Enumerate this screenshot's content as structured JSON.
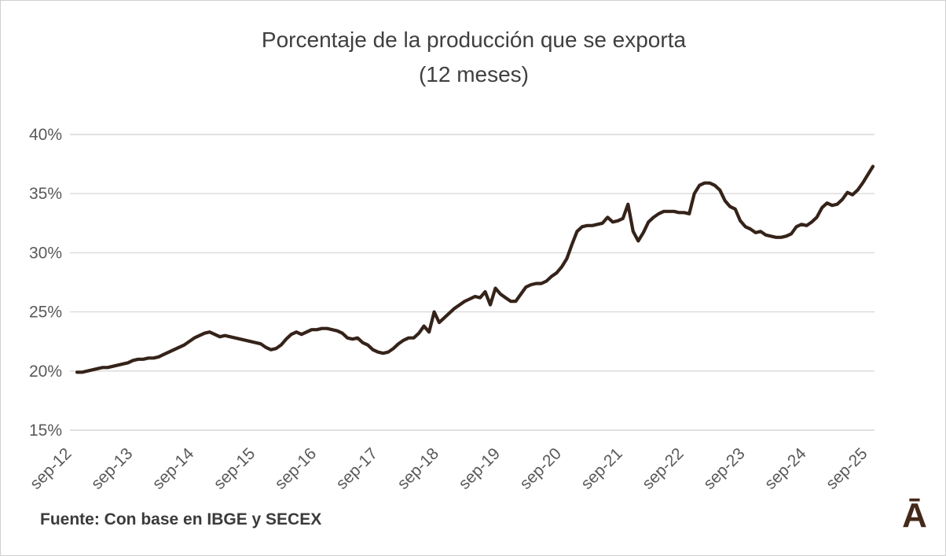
{
  "chart_data": {
    "type": "line",
    "title": "Porcentaje de la producción que se exporta",
    "subtitle": "(12 meses)",
    "x_tick_labels": [
      "sep-12",
      "sep-13",
      "sep-14",
      "sep-15",
      "sep-16",
      "sep-17",
      "sep-18",
      "sep-19",
      "sep-20",
      "sep-21",
      "sep-22",
      "sep-23",
      "sep-24",
      "sep-25"
    ],
    "points_per_tick": 12,
    "interval": "monthly",
    "y_ticks": [
      15,
      20,
      25,
      30,
      35,
      40
    ],
    "y_tick_labels": [
      "15%",
      "20%",
      "25%",
      "30%",
      "35%",
      "40%"
    ],
    "ylim": [
      15,
      40
    ],
    "grid": "horizontal",
    "legend": "none",
    "line_color": "#35231a",
    "gridline_color": "#d9d9d9",
    "axis_label_color": "#595959",
    "title_color": "#3f3f3f",
    "series": [
      {
        "name": "Porcentaje de la producción que se exporta (12 meses)",
        "values": [
          19.9,
          19.9,
          20.0,
          20.1,
          20.2,
          20.3,
          20.3,
          20.4,
          20.5,
          20.6,
          20.7,
          20.9,
          21.0,
          21.0,
          21.1,
          21.1,
          21.2,
          21.4,
          21.6,
          21.8,
          22.0,
          22.2,
          22.5,
          22.8,
          23.0,
          23.2,
          23.3,
          23.1,
          22.9,
          23.0,
          22.9,
          22.8,
          22.7,
          22.6,
          22.5,
          22.4,
          22.3,
          22.0,
          21.8,
          21.9,
          22.2,
          22.7,
          23.1,
          23.3,
          23.1,
          23.3,
          23.5,
          23.5,
          23.6,
          23.6,
          23.5,
          23.4,
          23.2,
          22.8,
          22.7,
          22.8,
          22.4,
          22.2,
          21.8,
          21.6,
          21.5,
          21.6,
          21.9,
          22.3,
          22.6,
          22.8,
          22.8,
          23.2,
          23.8,
          23.3,
          25.0,
          24.1,
          24.5,
          24.9,
          25.3,
          25.6,
          25.9,
          26.1,
          26.3,
          26.2,
          26.7,
          25.6,
          27.0,
          26.5,
          26.2,
          25.9,
          25.9,
          26.5,
          27.1,
          27.3,
          27.4,
          27.4,
          27.6,
          28.0,
          28.3,
          28.8,
          29.5,
          30.7,
          31.8,
          32.2,
          32.3,
          32.3,
          32.4,
          32.5,
          33.0,
          32.6,
          32.7,
          32.9,
          34.1,
          31.8,
          31.0,
          31.7,
          32.6,
          33.0,
          33.3,
          33.5,
          33.5,
          33.5,
          33.4,
          33.4,
          33.3,
          35.0,
          35.7,
          35.9,
          35.9,
          35.7,
          35.3,
          34.4,
          33.9,
          33.7,
          32.7,
          32.2,
          32.0,
          31.7,
          31.8,
          31.5,
          31.4,
          31.3,
          31.3,
          31.4,
          31.6,
          32.2,
          32.4,
          32.3,
          32.6,
          33.0,
          33.8,
          34.2,
          34.0,
          34.1,
          34.5,
          35.1,
          34.9,
          35.3,
          35.9,
          36.6,
          37.3
        ]
      }
    ]
  },
  "footer": {
    "source": "Fuente: Con base en IBGE y SECEX",
    "logo": "Ā"
  }
}
